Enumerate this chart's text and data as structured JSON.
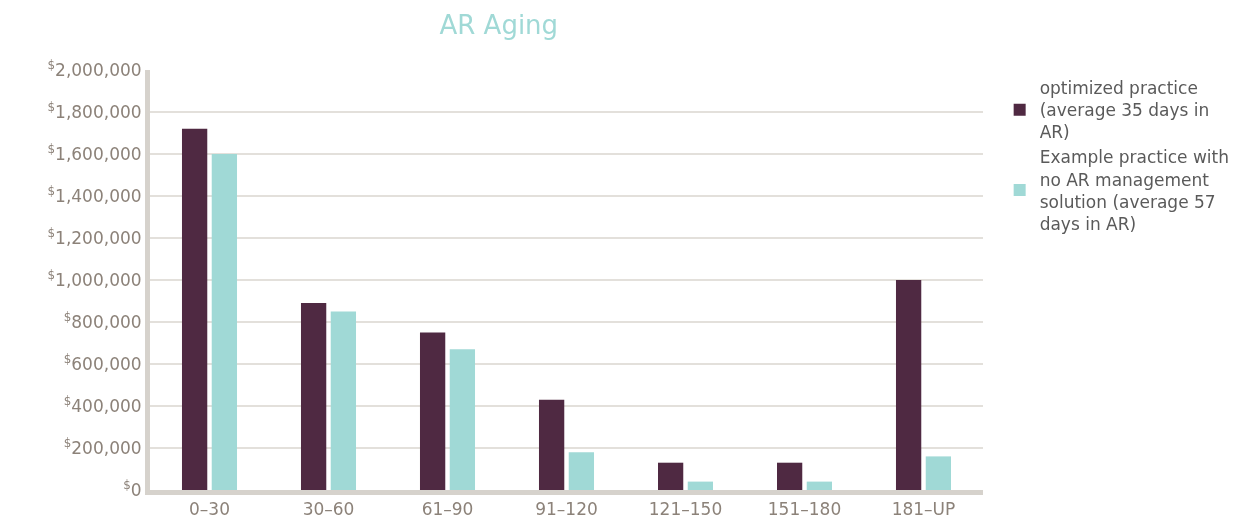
{
  "chart_data": {
    "type": "bar",
    "title": "AR Aging",
    "categories": [
      "0–30",
      "30–60",
      "61–90",
      "91–120",
      "121–150",
      "151–180",
      "181–UP"
    ],
    "series": [
      {
        "name": "optimized practice (average 35 days in AR)",
        "color": "#4f2942",
        "values": [
          1720000,
          890000,
          750000,
          430000,
          130000,
          130000,
          1000000
        ]
      },
      {
        "name": "Example practice with no AR management solution (average 57 days in AR)",
        "color": "#a0d9d6",
        "values": [
          1600000,
          850000,
          670000,
          180000,
          40000,
          40000,
          160000
        ]
      }
    ],
    "ylim": [
      0,
      2000000
    ],
    "yticks": [
      {
        "value": 0,
        "label": "$^{$}$0"
      },
      {
        "value": 200000,
        "label": "$^{$}$200,000"
      },
      {
        "value": 400000,
        "label": "$^{$}$400,000"
      },
      {
        "value": 600000,
        "label": "$^{$}$600,000"
      },
      {
        "value": 800000,
        "label": "$^{$}$800,000"
      },
      {
        "value": 1000000,
        "label": "$^{$}$1,000,000"
      },
      {
        "value": 1200000,
        "label": "$^{$}$1,200,000"
      },
      {
        "value": 1400000,
        "label": "$^{$}$1,400,000"
      },
      {
        "value": 1600000,
        "label": "$^{$}$1,600,000"
      },
      {
        "value": 1800000,
        "label": "$^{$}$1,800,000"
      },
      {
        "value": 2000000,
        "label": "$^{$}$2,000,000"
      }
    ],
    "grid": "y",
    "legend": "top right"
  }
}
